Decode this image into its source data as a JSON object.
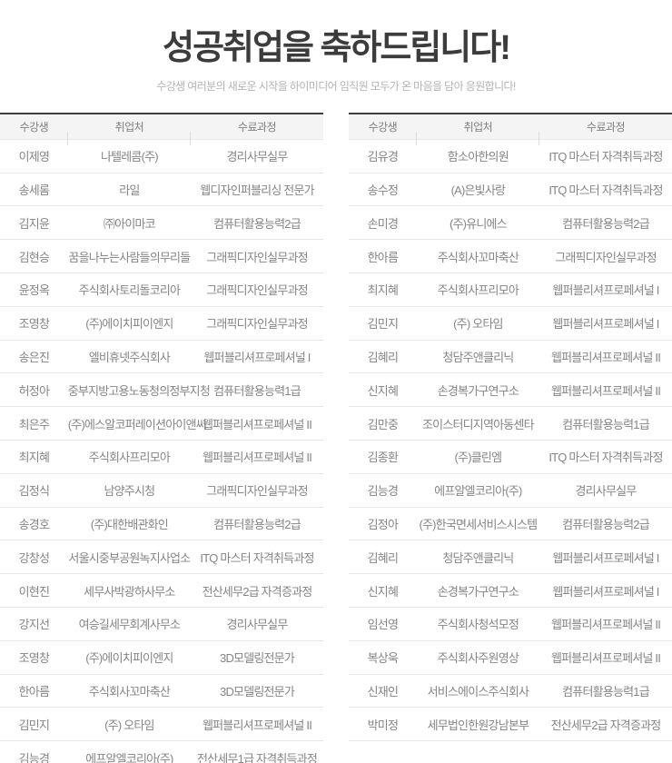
{
  "header": {
    "title": "성공취업을 축하드립니다!",
    "subtitle": "수강생 여러분의 새로운 시작을 하이미디어 임직원 모두가 온 마음을 담아 응원합니다!"
  },
  "colors": {
    "title_text": "#3c3c3c",
    "subtitle_text": "#b3b3b3",
    "table_top_border": "#3e3e3e",
    "header_bg": "#f4f4f4",
    "header_text": "#7f7f7f",
    "cell_text": "#858585",
    "row_border": "#e7e7e7"
  },
  "tables": [
    {
      "columns": [
        "수강생",
        "취업처",
        "수료과정"
      ],
      "rows": [
        {
          "student": "이제영",
          "employer": "나텔레콤(주)",
          "course": "경리사무실무"
        },
        {
          "student": "송세롬",
          "employer": "라일",
          "course": "웹디자인퍼블리싱 전문가"
        },
        {
          "student": "김지윤",
          "employer": "㈜아이마코",
          "course": "컴퓨터활용능력2급"
        },
        {
          "student": "김현승",
          "employer": "꿈을나누는사람들의무리들",
          "course": "그래픽디자인실무과정"
        },
        {
          "student": "윤정옥",
          "employer": "주식회사토리돌코리아",
          "course": "그래픽디자인실무과정"
        },
        {
          "student": "조영창",
          "employer": "(주)에이치피이엔지",
          "course": "그래픽디자인실무과정"
        },
        {
          "student": "송은진",
          "employer": "엘비휴넷주식회사",
          "course": "웹퍼블리셔프로페셔널 I"
        },
        {
          "student": "허정아",
          "employer": "중부지방고용노동청의정부지청",
          "course": "컴퓨터활용능력1급"
        },
        {
          "student": "최은주",
          "employer": "(주)에스알코퍼레이션아이앤씨",
          "course": "웹퍼블리셔프로페셔널 II"
        },
        {
          "student": "최지혜",
          "employer": "주식회사프리모아",
          "course": "웹퍼블리셔프로페셔널 II"
        },
        {
          "student": "김정식",
          "employer": "남양주시청",
          "course": "그래픽디자인실무과정"
        },
        {
          "student": "송경호",
          "employer": "(주)대한배관화인",
          "course": "컴퓨터활용능력2급"
        },
        {
          "student": "강창성",
          "employer": "서울시중부공원녹지사업소",
          "course": "ITQ 마스터 자격취득과정"
        },
        {
          "student": "이현진",
          "employer": "세무사박광하사무소",
          "course": "전산세무2급 자격증과정"
        },
        {
          "student": "강지선",
          "employer": "여승길세무회계사무소",
          "course": "경리사무실무"
        },
        {
          "student": "조영창",
          "employer": "(주)에이치피이엔지",
          "course": "3D모델링전문가"
        },
        {
          "student": "한아름",
          "employer": "주식회사꼬마축산",
          "course": "3D모델링전문가"
        },
        {
          "student": "김민지",
          "employer": "(주) 오타임",
          "course": "웹퍼블리셔프로페셔널 II"
        },
        {
          "student": "김능경",
          "employer": "에프알엘코리아(주)",
          "course": "전산세무1급 자격취득과정"
        }
      ]
    },
    {
      "columns": [
        "수강생",
        "취업처",
        "수료과정"
      ],
      "rows": [
        {
          "student": "김유경",
          "employer": "함소아한의원",
          "course": "ITQ 마스터 자격취득과정"
        },
        {
          "student": "송수정",
          "employer": "(A)은빛사랑",
          "course": "ITQ 마스터 자격취득과정"
        },
        {
          "student": "손미경",
          "employer": "(주)유니에스",
          "course": "컴퓨터활용능력2급"
        },
        {
          "student": "한아름",
          "employer": "주식회사꼬마축산",
          "course": "그래픽디자인실무과정"
        },
        {
          "student": "최지혜",
          "employer": "주식회사프리모아",
          "course": "웹퍼블리셔프로페셔널 I"
        },
        {
          "student": "김민지",
          "employer": "(주) 오타임",
          "course": "웹퍼블리셔프로페셔널 I"
        },
        {
          "student": "김혜리",
          "employer": "청담주앤클리닉",
          "course": "웹퍼블리셔프로페셔널 II"
        },
        {
          "student": "신지혜",
          "employer": "손경복가구연구소",
          "course": "웹퍼블리셔프로페셔널 II"
        },
        {
          "student": "김만중",
          "employer": "조이스터디지역아동센타",
          "course": "컴퓨터활용능력1급"
        },
        {
          "student": "김종환",
          "employer": "(주)클린엠",
          "course": "ITQ 마스터 자격취득과정"
        },
        {
          "student": "김능경",
          "employer": "에프알엘코리아(주)",
          "course": "경리사무실무"
        },
        {
          "student": "김정아",
          "employer": "(주)한국면세서비스시스템",
          "course": "컴퓨터활용능력2급"
        },
        {
          "student": "김혜리",
          "employer": "청담주앤클리닉",
          "course": "웹퍼블리셔프로페셔널 I"
        },
        {
          "student": "신지혜",
          "employer": "손경복가구연구소",
          "course": "웹퍼블리셔프로페셔널 I"
        },
        {
          "student": "임선영",
          "employer": "주식회사청석모정",
          "course": "웹퍼블리셔프로페셔널 II"
        },
        {
          "student": "복상욱",
          "employer": "주식회사주원영상",
          "course": "웹퍼블리셔프로페셔널 II"
        },
        {
          "student": "신재인",
          "employer": "서비스에이스주식회사",
          "course": "컴퓨터활용능력1급"
        },
        {
          "student": "박미정",
          "employer": "세무법인한원강남본부",
          "course": "전산세무2급 자격증과정"
        },
        {
          "student": "",
          "employer": "",
          "course": ""
        }
      ]
    }
  ]
}
